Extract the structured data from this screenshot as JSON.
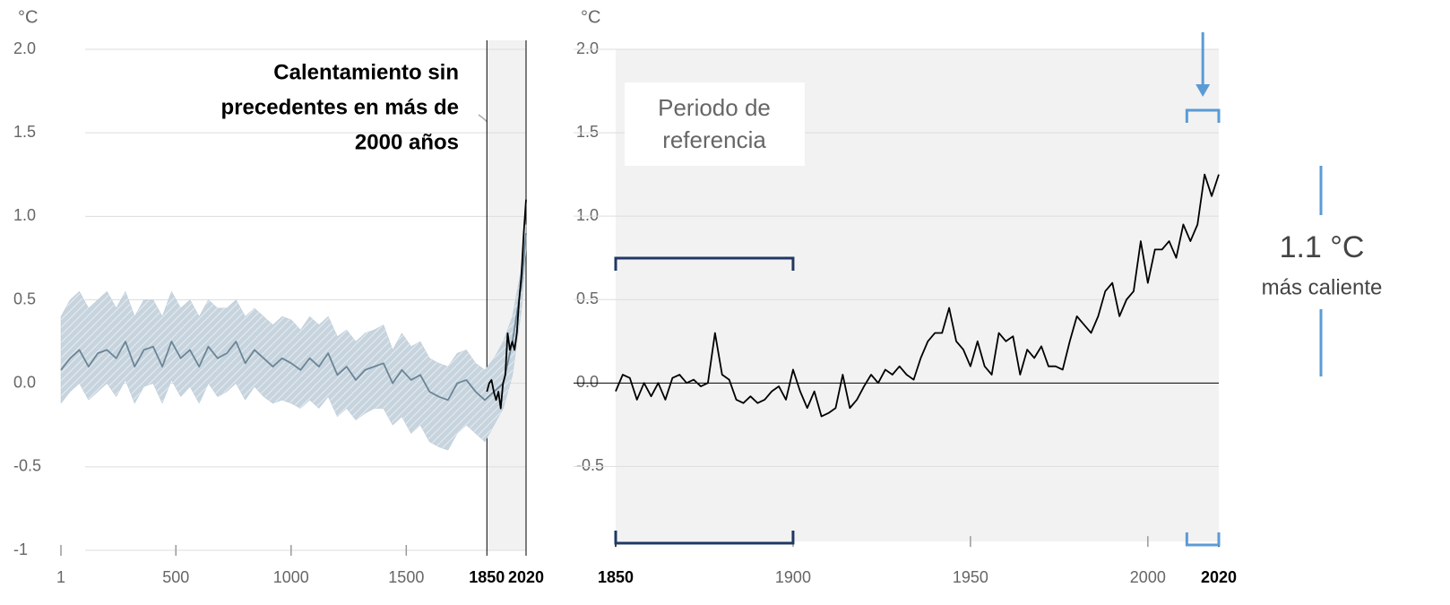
{
  "chart_data": [
    {
      "type": "line",
      "unit": "°C",
      "annotation": [
        "Calentamiento sin",
        "precedentes en más de",
        "2000 años"
      ],
      "xlim": [
        1,
        2020
      ],
      "ylim": [
        -1,
        2
      ],
      "xticks": [
        1,
        500,
        1000,
        1500,
        1850,
        2020
      ],
      "yticks": [
        {
          "value": 2,
          "label": "2.0"
        },
        1.5,
        {
          "value": 1,
          "label": "1.0"
        },
        0.5,
        {
          "value": 0,
          "label": "0.0"
        },
        -0.5,
        -1
      ],
      "grid": true,
      "highlight_range": [
        1850,
        2020
      ],
      "band": {
        "color": "#b9c9d5",
        "x": [
          1,
          41,
          81,
          121,
          161,
          201,
          241,
          281,
          321,
          361,
          401,
          441,
          481,
          521,
          561,
          601,
          641,
          681,
          721,
          761,
          801,
          841,
          881,
          921,
          961,
          1001,
          1041,
          1081,
          1121,
          1161,
          1201,
          1241,
          1281,
          1321,
          1361,
          1401,
          1441,
          1481,
          1521,
          1561,
          1601,
          1641,
          1681,
          1721,
          1761,
          1801,
          1841,
          1881,
          1921,
          1961,
          2001,
          2020
        ],
        "upper": [
          0.4,
          0.5,
          0.55,
          0.45,
          0.5,
          0.55,
          0.45,
          0.55,
          0.4,
          0.5,
          0.5,
          0.4,
          0.55,
          0.45,
          0.5,
          0.4,
          0.5,
          0.45,
          0.45,
          0.5,
          0.4,
          0.45,
          0.4,
          0.35,
          0.4,
          0.38,
          0.32,
          0.4,
          0.35,
          0.4,
          0.28,
          0.32,
          0.25,
          0.3,
          0.32,
          0.35,
          0.2,
          0.3,
          0.22,
          0.25,
          0.15,
          0.12,
          0.1,
          0.18,
          0.2,
          0.12,
          0.08,
          0.15,
          0.25,
          0.4,
          0.7,
          0.95
        ],
        "lower": [
          -0.12,
          -0.05,
          0.0,
          -0.1,
          -0.05,
          0.0,
          -0.08,
          0.02,
          -0.12,
          -0.02,
          0.0,
          -0.12,
          0.02,
          -0.08,
          -0.02,
          -0.12,
          0.0,
          -0.08,
          -0.05,
          0.0,
          -0.1,
          -0.02,
          -0.08,
          -0.12,
          -0.1,
          -0.12,
          -0.15,
          -0.1,
          -0.15,
          -0.08,
          -0.2,
          -0.15,
          -0.22,
          -0.18,
          -0.15,
          -0.15,
          -0.25,
          -0.2,
          -0.3,
          -0.25,
          -0.35,
          -0.38,
          -0.4,
          -0.3,
          -0.25,
          -0.3,
          -0.35,
          -0.25,
          -0.15,
          0.05,
          0.45,
          0.8
        ]
      },
      "series": [
        {
          "color": "#6b8596",
          "x": [
            1,
            41,
            81,
            121,
            161,
            201,
            241,
            281,
            321,
            361,
            401,
            441,
            481,
            521,
            561,
            601,
            641,
            681,
            721,
            761,
            801,
            841,
            881,
            921,
            961,
            1001,
            1041,
            1081,
            1121,
            1161,
            1201,
            1241,
            1281,
            1321,
            1361,
            1401,
            1441,
            1481,
            1521,
            1561,
            1601,
            1641,
            1681,
            1721,
            1761,
            1801,
            1841,
            1881,
            1921,
            1961,
            2001,
            2020
          ],
          "values": [
            0.08,
            0.15,
            0.2,
            0.1,
            0.18,
            0.2,
            0.15,
            0.25,
            0.1,
            0.2,
            0.22,
            0.1,
            0.25,
            0.15,
            0.2,
            0.1,
            0.22,
            0.15,
            0.18,
            0.25,
            0.12,
            0.2,
            0.15,
            0.1,
            0.15,
            0.12,
            0.08,
            0.15,
            0.1,
            0.18,
            0.05,
            0.1,
            0.02,
            0.08,
            0.1,
            0.12,
            0.0,
            0.08,
            0.02,
            0.05,
            -0.05,
            -0.08,
            -0.1,
            0.0,
            0.02,
            -0.05,
            -0.1,
            -0.05,
            0.0,
            0.25,
            0.6,
            0.9
          ]
        },
        {
          "color": "#000000",
          "x": [
            1850,
            1860,
            1870,
            1880,
            1890,
            1900,
            1910,
            1920,
            1930,
            1940,
            1950,
            1960,
            1970,
            1980,
            1990,
            2000,
            2010,
            2020
          ],
          "values": [
            -0.05,
            0.0,
            0.02,
            -0.05,
            -0.1,
            -0.05,
            -0.15,
            0.0,
            0.05,
            0.3,
            0.2,
            0.25,
            0.2,
            0.3,
            0.5,
            0.65,
            0.9,
            1.1
          ]
        }
      ]
    },
    {
      "type": "line",
      "unit": "°C",
      "reference_label": [
        "Periodo de",
        "referencia"
      ],
      "reference_period": [
        1850,
        1900
      ],
      "recent_period": [
        2011,
        2020
      ],
      "warming_value": "1.1 °C",
      "warming_text": "más caliente",
      "xlim": [
        1850,
        2020
      ],
      "ylim": [
        -0.95,
        2
      ],
      "xticks": [
        1850,
        1900,
        1950,
        2000,
        2020
      ],
      "yticks": [
        {
          "value": 2,
          "label": "2.0"
        },
        1.5,
        {
          "value": 1,
          "label": "1.0"
        },
        0.5,
        {
          "value": 0,
          "label": "0.0"
        },
        -0.5
      ],
      "grid": true,
      "highlight_range": [
        1850,
        2020
      ],
      "series": [
        {
          "color": "#000000",
          "x": [
            1850,
            1852,
            1854,
            1856,
            1858,
            1860,
            1862,
            1864,
            1866,
            1868,
            1870,
            1872,
            1874,
            1876,
            1878,
            1880,
            1882,
            1884,
            1886,
            1888,
            1890,
            1892,
            1894,
            1896,
            1898,
            1900,
            1902,
            1904,
            1906,
            1908,
            1910,
            1912,
            1914,
            1916,
            1918,
            1920,
            1922,
            1924,
            1926,
            1928,
            1930,
            1932,
            1934,
            1936,
            1938,
            1940,
            1942,
            1944,
            1946,
            1948,
            1950,
            1952,
            1954,
            1956,
            1958,
            1960,
            1962,
            1964,
            1966,
            1968,
            1970,
            1972,
            1974,
            1976,
            1978,
            1980,
            1982,
            1984,
            1986,
            1988,
            1990,
            1992,
            1994,
            1996,
            1998,
            2000,
            2002,
            2004,
            2006,
            2008,
            2010,
            2012,
            2014,
            2016,
            2018,
            2020
          ],
          "values": [
            -0.05,
            0.05,
            0.03,
            -0.1,
            0.0,
            -0.08,
            0.0,
            -0.1,
            0.03,
            0.05,
            0.0,
            0.02,
            -0.02,
            0.0,
            0.3,
            0.05,
            0.02,
            -0.1,
            -0.12,
            -0.08,
            -0.12,
            -0.1,
            -0.05,
            -0.02,
            -0.1,
            0.08,
            -0.05,
            -0.15,
            -0.05,
            -0.2,
            -0.18,
            -0.15,
            0.05,
            -0.15,
            -0.1,
            -0.02,
            0.05,
            0.0,
            0.08,
            0.05,
            0.1,
            0.05,
            0.02,
            0.15,
            0.25,
            0.3,
            0.3,
            0.45,
            0.25,
            0.2,
            0.1,
            0.25,
            0.1,
            0.05,
            0.3,
            0.25,
            0.28,
            0.05,
            0.2,
            0.15,
            0.22,
            0.1,
            0.1,
            0.08,
            0.25,
            0.4,
            0.35,
            0.3,
            0.4,
            0.55,
            0.6,
            0.4,
            0.5,
            0.55,
            0.85,
            0.6,
            0.8,
            0.8,
            0.85,
            0.75,
            0.95,
            0.85,
            0.95,
            1.25,
            1.12,
            1.25
          ]
        }
      ]
    }
  ]
}
